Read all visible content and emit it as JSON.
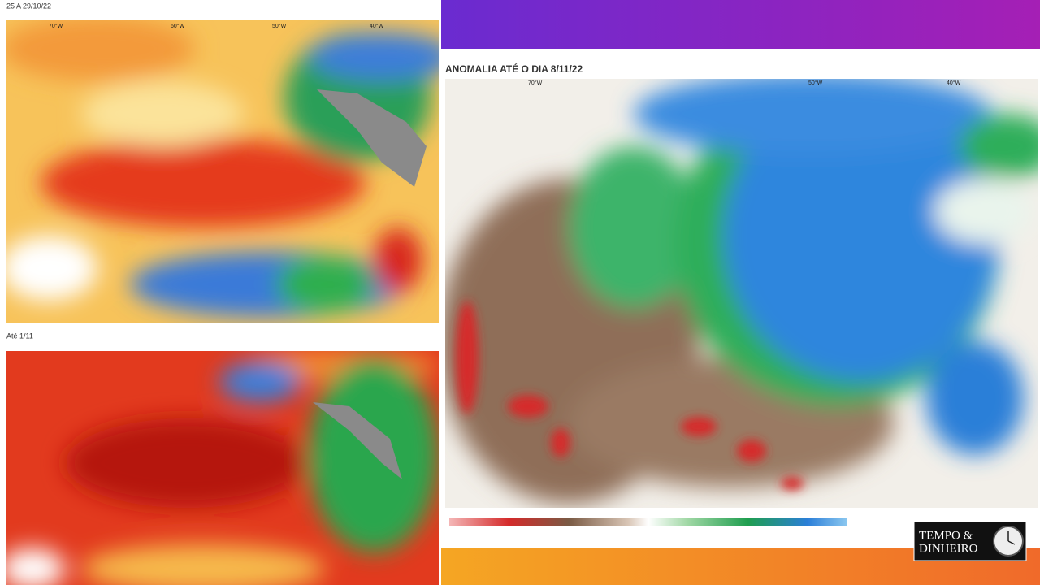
{
  "panels": [
    {
      "label": "25 A 29/10/22",
      "lon_labels": [
        "70°W",
        "60°W",
        "50°W",
        "40°W"
      ]
    },
    {
      "label": "Até 1/11"
    }
  ],
  "main": {
    "title": "ANOMALIA ATÉ O DIA 8/11/22",
    "lon_labels": [
      "70°W",
      "50°W",
      "40°W"
    ]
  },
  "logo": {
    "line1": "TEMPO &",
    "line2": "DINHEIRO"
  }
}
